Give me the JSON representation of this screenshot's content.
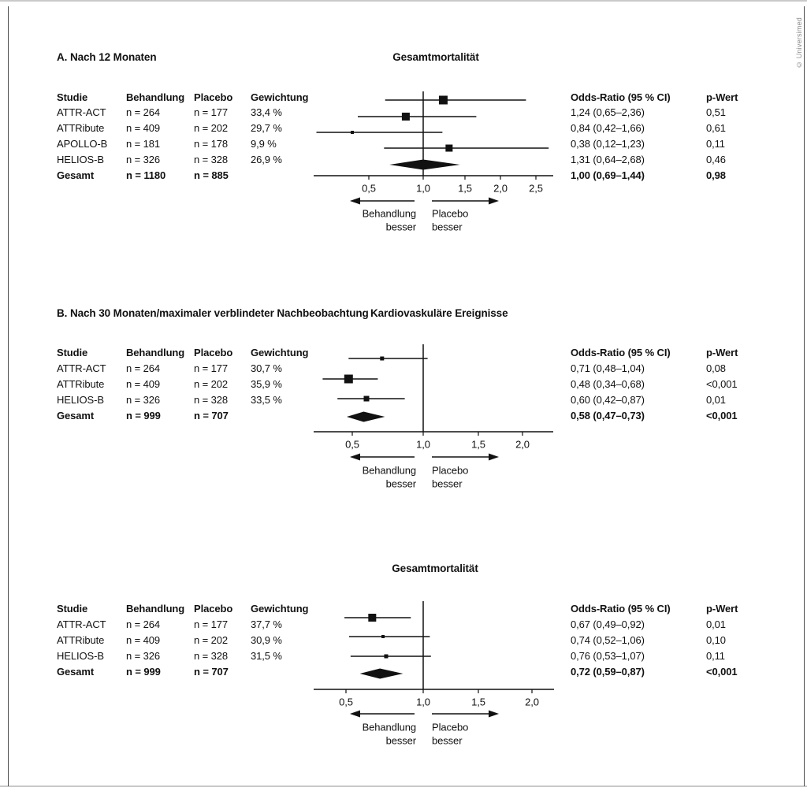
{
  "copyright": "© Universimed",
  "columns": {
    "study": "Studie",
    "treatment": "Behandlung",
    "placebo": "Placebo",
    "weight": "Gewichtung",
    "or": "Odds-Ratio (95 % CI)",
    "p": "p-Wert"
  },
  "direction_labels": {
    "left": [
      "Behandlung",
      "besser"
    ],
    "right": [
      "Placebo",
      "besser"
    ]
  },
  "chart_data": [
    {
      "type": "forest",
      "panel_label": "A. Nach 12 Monaten",
      "plot_title": "Gesamtmortalität",
      "x_axis": {
        "scale": "odds-ratio",
        "tick_values": [
          0.5,
          1.0,
          1.5,
          2.0,
          2.5
        ],
        "tick_labels": [
          "0,5",
          "1,0",
          "1,5",
          "2,0",
          "2,5"
        ],
        "null_line": 1.0
      },
      "rows": [
        {
          "study": "ATTR-ACT",
          "treatment": "n = 264",
          "placebo": "n = 177",
          "weight": "33,4 %",
          "or": 1.24,
          "ci_low": 0.65,
          "ci_high": 2.36,
          "or_label": "1,24 (0,65–2,36)",
          "p_label": "0,51",
          "marker_size": 11
        },
        {
          "study": "ATTRibute",
          "treatment": "n = 409",
          "placebo": "n = 202",
          "weight": "29,7 %",
          "or": 0.84,
          "ci_low": 0.42,
          "ci_high": 1.66,
          "or_label": "0,84 (0,42–1,66)",
          "p_label": "0,61",
          "marker_size": 10
        },
        {
          "study": "APOLLO-B",
          "treatment": "n = 181",
          "placebo": "n = 178",
          "weight": "9,9 %",
          "or": 0.38,
          "ci_low": 0.12,
          "ci_high": 1.23,
          "or_label": "0,38 (0,12–1,23)",
          "p_label": "0,11",
          "marker_size": 4
        },
        {
          "study": "HELIOS-B",
          "treatment": "n = 326",
          "placebo": "n = 328",
          "weight": "26,9 %",
          "or": 1.31,
          "ci_low": 0.64,
          "ci_high": 2.68,
          "or_label": "1,31 (0,64–2,68)",
          "p_label": "0,46",
          "marker_size": 9
        }
      ],
      "total": {
        "study": "Gesamt",
        "treatment": "n = 1180",
        "placebo": "n = 885",
        "or": 1.0,
        "ci_low": 0.69,
        "ci_high": 1.44,
        "or_label": "1,00 (0,69–1,44)",
        "p_label": "0,98"
      }
    },
    {
      "type": "forest",
      "panel_label": "B. Nach 30 Monaten/maximaler verblindeter Nachbeobachtung",
      "plot_title": "Kardiovaskuläre Ereignisse",
      "x_axis": {
        "scale": "odds-ratio",
        "tick_values": [
          0.5,
          1.0,
          1.5,
          2.0
        ],
        "tick_labels": [
          "0,5",
          "1,0",
          "1,5",
          "2,0"
        ],
        "null_line": 1.0
      },
      "rows": [
        {
          "study": "ATTR-ACT",
          "treatment": "n = 264",
          "placebo": "n = 177",
          "weight": "30,7 %",
          "or": 0.71,
          "ci_low": 0.48,
          "ci_high": 1.04,
          "or_label": "0,71 (0,48–1,04)",
          "p_label": "0,08",
          "marker_size": 5
        },
        {
          "study": "ATTRibute",
          "treatment": "n = 409",
          "placebo": "n = 202",
          "weight": "35,9 %",
          "or": 0.48,
          "ci_low": 0.34,
          "ci_high": 0.68,
          "or_label": "0,48 (0,34–0,68)",
          "p_label": "<0,001",
          "marker_size": 11
        },
        {
          "study": "HELIOS-B",
          "treatment": "n = 326",
          "placebo": "n = 328",
          "weight": "33,5 %",
          "or": 0.6,
          "ci_low": 0.42,
          "ci_high": 0.87,
          "or_label": "0,60 (0,42–0,87)",
          "p_label": "0,01",
          "marker_size": 7
        }
      ],
      "total": {
        "study": "Gesamt",
        "treatment": "n = 999",
        "placebo": "n = 707",
        "or": 0.58,
        "ci_low": 0.47,
        "ci_high": 0.73,
        "or_label": "0,58 (0,47–0,73)",
        "p_label": "<0,001"
      }
    },
    {
      "type": "forest",
      "panel_label": "",
      "plot_title": "Gesamtmortalität",
      "x_axis": {
        "scale": "odds-ratio",
        "tick_values": [
          0.5,
          1.0,
          1.5,
          2.0
        ],
        "tick_labels": [
          "0,5",
          "1,0",
          "1,5",
          "2,0"
        ],
        "null_line": 1.0
      },
      "rows": [
        {
          "study": "ATTR-ACT",
          "treatment": "n = 264",
          "placebo": "n = 177",
          "weight": "37,7 %",
          "or": 0.67,
          "ci_low": 0.49,
          "ci_high": 0.92,
          "or_label": "0,67 (0,49–0,92)",
          "p_label": "0,01",
          "marker_size": 10
        },
        {
          "study": "ATTRibute",
          "treatment": "n = 409",
          "placebo": "n = 202",
          "weight": "30,9 %",
          "or": 0.74,
          "ci_low": 0.52,
          "ci_high": 1.06,
          "or_label": "0,74 (0,52–1,06)",
          "p_label": "0,10",
          "marker_size": 4
        },
        {
          "study": "HELIOS-B",
          "treatment": "n = 326",
          "placebo": "n = 328",
          "weight": "31,5 %",
          "or": 0.76,
          "ci_low": 0.53,
          "ci_high": 1.07,
          "or_label": "0,76 (0,53–1,07)",
          "p_label": "0,11",
          "marker_size": 5
        }
      ],
      "total": {
        "study": "Gesamt",
        "treatment": "n = 999",
        "placebo": "n = 707",
        "or": 0.72,
        "ci_low": 0.59,
        "ci_high": 0.87,
        "or_label": "0,72 (0,59–0,87)",
        "p_label": "<0,001"
      }
    }
  ]
}
